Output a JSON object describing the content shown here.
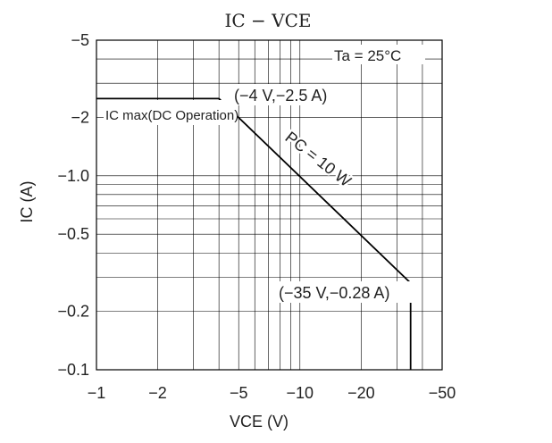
{
  "chart_data": {
    "type": "line",
    "title": "IC − VCE",
    "ylabel": "IC (A)",
    "xlabel": "VCE (V)",
    "x_scale": "log",
    "y_scale": "log",
    "xlim": [
      -1,
      -50
    ],
    "ylim": [
      -0.1,
      -5
    ],
    "x_ticks": [
      {
        "value": -1,
        "label": "−1"
      },
      {
        "value": -2,
        "label": "−2"
      },
      {
        "value": -5,
        "label": "−5"
      },
      {
        "value": -10,
        "label": "−10"
      },
      {
        "value": -20,
        "label": "−20"
      },
      {
        "value": -50,
        "label": "−50"
      }
    ],
    "y_ticks": [
      {
        "value": -0.1,
        "label": "−0.1"
      },
      {
        "value": -0.2,
        "label": "−0.2"
      },
      {
        "value": -0.5,
        "label": "−0.5"
      },
      {
        "value": -1.0,
        "label": "−1.0"
      },
      {
        "value": -2,
        "label": "−2"
      },
      {
        "value": -5,
        "label": "−5"
      }
    ],
    "grid": true,
    "series": [
      {
        "x": [
          -1,
          -4,
          -35,
          -35
        ],
        "y": [
          -2.5,
          -2.5,
          -0.28,
          -0.1
        ]
      }
    ],
    "annotations": {
      "ic_max": "IC max(DC Operation)",
      "point_a": "(−4 V,−2.5 A)",
      "point_b": "(−35 V,−0.28 A)",
      "pc": "PC = 10 W",
      "temp": "Ta = 25°C"
    },
    "colors": {
      "line": "#000000",
      "grid": "#000000"
    }
  }
}
